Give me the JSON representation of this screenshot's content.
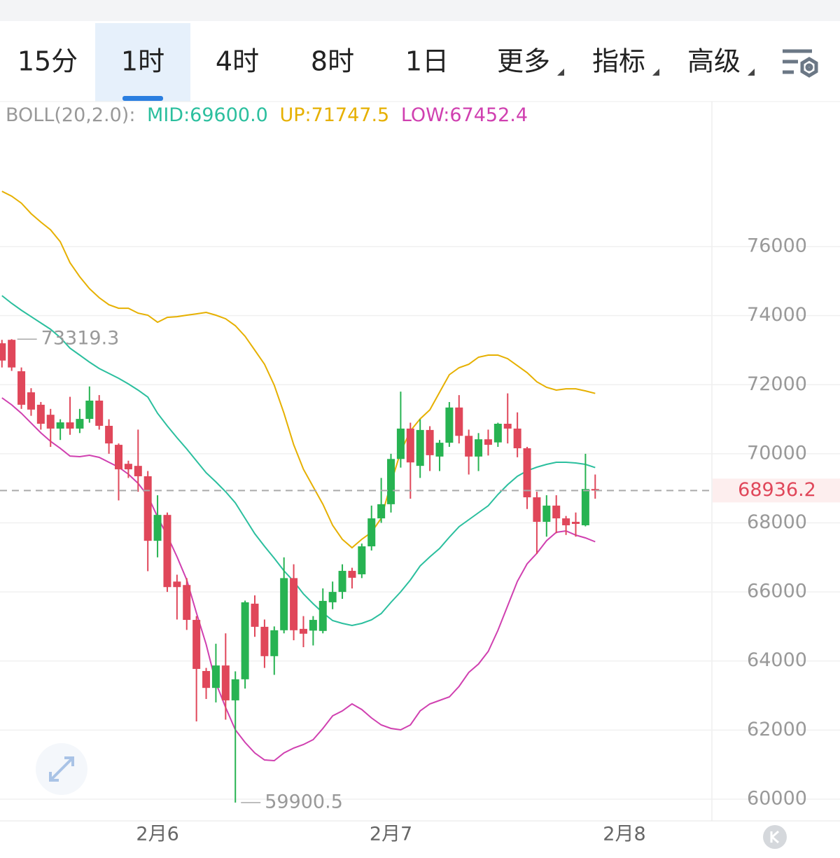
{
  "toolbar": {
    "tabs": [
      "15分",
      "1时",
      "4时",
      "8时",
      "1日",
      "更多",
      "指标",
      "高级"
    ],
    "selected": 1
  },
  "chart_data": {
    "type": "candlestick",
    "indicator": "BOLL(20,2.0):",
    "x": [
      0,
      1,
      2,
      3,
      4,
      5,
      6,
      7,
      8,
      9,
      10,
      11,
      12,
      13,
      14,
      15,
      16,
      17,
      18,
      19,
      20,
      21,
      22,
      23,
      24,
      25,
      26,
      27,
      28,
      29,
      30,
      31,
      32,
      33,
      34,
      35,
      36,
      37,
      38,
      39,
      40,
      41,
      42,
      43,
      44,
      45,
      46,
      47,
      48,
      49,
      50,
      51,
      52,
      53,
      54,
      55,
      56,
      57,
      58,
      59,
      60,
      61
    ],
    "open": [
      73200,
      73300,
      72390,
      71780,
      71420,
      71130,
      70730,
      70910,
      70730,
      71010,
      71540,
      70810,
      70260,
      69710,
      69650,
      69350,
      67480,
      68230,
      66300,
      66200,
      65190,
      63710,
      63220,
      63870,
      62860,
      63470,
      65660,
      64990,
      64140,
      64890,
      66400,
      64930,
      64880,
      64870,
      65700,
      66000,
      66610,
      66510,
      67320,
      68130,
      68540,
      69850,
      70730,
      69650,
      70690,
      69920,
      70320,
      71340,
      70520,
      69920,
      70420,
      70330,
      70870,
      70730,
      70160,
      68740,
      68030,
      68500,
      68130,
      68030,
      67930,
      68980
    ],
    "high": [
      73300,
      73319.3,
      72500,
      71900,
      71500,
      71300,
      71000,
      71650,
      71300,
      71950,
      71700,
      71000,
      70300,
      69800,
      70700,
      69500,
      68800,
      68300,
      66500,
      66400,
      65300,
      63800,
      64500,
      64800,
      63700,
      65750,
      65900,
      65200,
      65000,
      67000,
      66800,
      65300,
      65300,
      66100,
      66300,
      66800,
      66700,
      67400,
      68500,
      69300,
      70000,
      71800,
      70900,
      71000,
      70800,
      70400,
      71500,
      71700,
      70700,
      70600,
      70700,
      70900,
      71750,
      71200,
      70200,
      68900,
      68800,
      68800,
      68200,
      68300,
      70000,
      69400
    ],
    "low": [
      72500,
      72400,
      71300,
      71100,
      70700,
      70200,
      70400,
      70550,
      70600,
      70900,
      70700,
      70000,
      68650,
      69300,
      68900,
      66600,
      67000,
      66000,
      65200,
      64900,
      62250,
      62900,
      62800,
      62300,
      59900.5,
      63200,
      64700,
      63800,
      63600,
      64800,
      64600,
      64400,
      64450,
      64800,
      65500,
      65800,
      66100,
      66400,
      67200,
      68000,
      68300,
      69600,
      68700,
      69300,
      69500,
      69500,
      70200,
      70300,
      69400,
      69500,
      69950,
      70200,
      70300,
      69900,
      68400,
      67100,
      67600,
      67700,
      67650,
      67600,
      67900,
      68700
    ],
    "close": [
      72700,
      72500,
      71420,
      71280,
      70870,
      70730,
      70910,
      70730,
      71010,
      71540,
      70810,
      70300,
      69550,
      69550,
      69350,
      67480,
      68230,
      66140,
      66140,
      65190,
      63770,
      63220,
      63870,
      62860,
      63470,
      65700,
      64990,
      64140,
      64890,
      66400,
      64890,
      64790,
      65190,
      65740,
      66000,
      66610,
      66410,
      67320,
      68130,
      68540,
      69850,
      70730,
      69750,
      70690,
      69960,
      70320,
      71340,
      70520,
      69920,
      70420,
      70260,
      70870,
      70730,
      70160,
      68740,
      68030,
      68500,
      68130,
      67930,
      67970,
      68980,
      68936.2
    ],
    "up_color": "#27b352",
    "down_color": "#e0475a",
    "series": [
      {
        "name": "MID:69600.0",
        "color": "#2bbf9e",
        "values": [
          74580,
          74357,
          74155,
          73972,
          73789,
          73607,
          73364,
          73059,
          72857,
          72654,
          72471,
          72329,
          72187,
          72025,
          71843,
          71640,
          71173,
          70808,
          70464,
          70139,
          69795,
          69450,
          69186,
          68902,
          68578,
          68132,
          67685,
          67320,
          66975,
          66610,
          66306,
          65941,
          65657,
          65394,
          65171,
          65090,
          65029,
          65090,
          65191,
          65374,
          65698,
          66002,
          66347,
          66752,
          67016,
          67259,
          67584,
          67888,
          68091,
          68294,
          68497,
          68821,
          69105,
          69348,
          69510,
          69612,
          69693,
          69754,
          69754,
          69734,
          69693,
          69600.0
        ]
      },
      {
        "name": "UP:71747.5",
        "color": "#e6b000",
        "values": [
          77602,
          77460,
          77257,
          76953,
          76710,
          76487,
          76142,
          75534,
          75128,
          74783,
          74520,
          74317,
          74215,
          74215,
          74073,
          74013,
          73810,
          73952,
          73972,
          74013,
          74053,
          74094,
          74013,
          73911,
          73709,
          73404,
          72999,
          72593,
          71985,
          71173,
          70261,
          69551,
          69044,
          68537,
          67929,
          67523,
          67280,
          67523,
          67726,
          68132,
          69145,
          70058,
          70666,
          71011,
          71274,
          71782,
          72289,
          72492,
          72593,
          72796,
          72857,
          72857,
          72755,
          72552,
          72350,
          72086,
          71924,
          71843,
          71883,
          71883,
          71822,
          71747.5
        ]
      },
      {
        "name": "LOW:67452.4",
        "color": "#d040b0",
        "values": [
          71620,
          71417,
          71173,
          70889,
          70606,
          70362,
          70159,
          69936,
          69916,
          69957,
          69896,
          69754,
          69612,
          69409,
          69145,
          68780,
          68172,
          67624,
          67016,
          66347,
          65394,
          64481,
          63366,
          62656,
          62007,
          61642,
          61338,
          61135,
          61115,
          61338,
          61480,
          61581,
          61723,
          62048,
          62413,
          62554,
          62757,
          62595,
          62352,
          62149,
          62048,
          62007,
          62149,
          62554,
          62757,
          62859,
          62960,
          63264,
          63670,
          63913,
          64278,
          64887,
          65596,
          66306,
          66813,
          67117,
          67482,
          67726,
          67767,
          67645,
          67564,
          67452.4
        ]
      }
    ],
    "annotations": [
      {
        "x": 1,
        "value": 73319.3,
        "label": "73319.3"
      },
      {
        "x": 24,
        "value": 59900.5,
        "label": "59900.5"
      }
    ],
    "last_price": {
      "value": 68936.2,
      "label": "68936.2"
    },
    "xlim": [
      -0.2,
      73
    ],
    "xticks": [
      {
        "value": 16,
        "label": "2月6"
      },
      {
        "value": 40,
        "label": "2月7"
      },
      {
        "value": 64,
        "label": "2月8"
      }
    ],
    "ylim": [
      59370,
      80200
    ],
    "yticks": [
      60000,
      62000,
      64000,
      66000,
      68000,
      70000,
      72000,
      74000,
      76000
    ],
    "grid": true
  }
}
